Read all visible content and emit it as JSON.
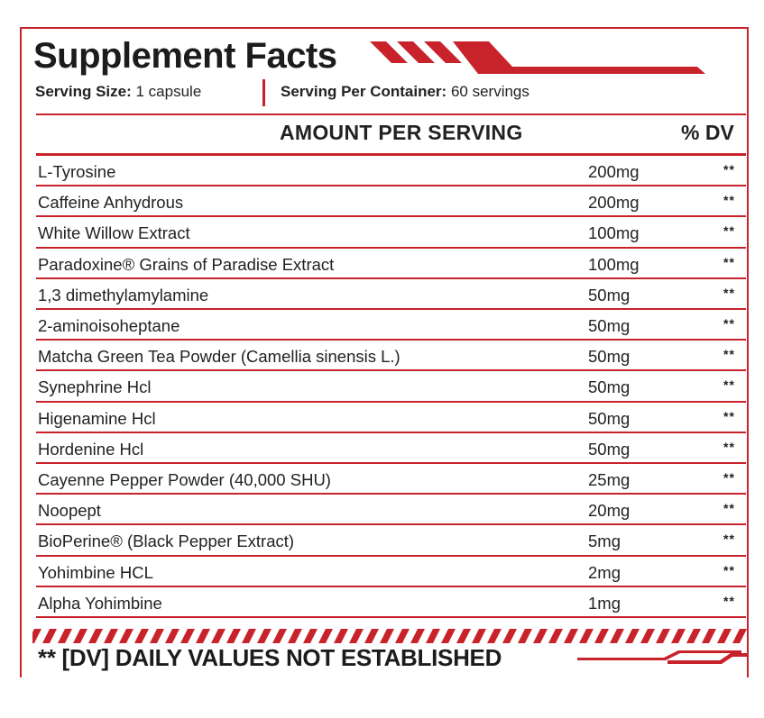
{
  "panel": {
    "title": "Supplement Facts",
    "serving_size_label": "Serving Size:",
    "serving_size_value": "1 capsule",
    "servings_label": "Serving Per Container:",
    "servings_value": "60 servings",
    "amount_header": "AMOUNT PER SERVING",
    "dv_header": "% DV",
    "ingredients": [
      {
        "name": "L-Tyrosine",
        "amount": "200mg",
        "dv": "**"
      },
      {
        "name": "Caffeine Anhydrous",
        "amount": "200mg",
        "dv": "**"
      },
      {
        "name": "White Willow Extract",
        "amount": "100mg",
        "dv": "**"
      },
      {
        "name": "Paradoxine® Grains of Paradise Extract",
        "amount": "100mg",
        "dv": "**"
      },
      {
        "name": "1,3 dimethylamylamine",
        "amount": "50mg",
        "dv": "**"
      },
      {
        "name": "2-aminoisoheptane",
        "amount": "50mg",
        "dv": "**"
      },
      {
        "name": "Matcha Green Tea Powder (Camellia sinensis L.)",
        "amount": "50mg",
        "dv": "**"
      },
      {
        "name": "Synephrine Hcl",
        "amount": "50mg",
        "dv": "**"
      },
      {
        "name": "Higenamine Hcl",
        "amount": "50mg",
        "dv": "**"
      },
      {
        "name": "Hordenine Hcl",
        "amount": "50mg",
        "dv": "**"
      },
      {
        "name": "Cayenne Pepper Powder (40,000 SHU)",
        "amount": "25mg",
        "dv": "**"
      },
      {
        "name": "Noopept",
        "amount": "20mg",
        "dv": "**"
      },
      {
        "name": "BioPerine® (Black Pepper Extract)",
        "amount": "5mg",
        "dv": "**"
      },
      {
        "name": "Yohimbine HCL",
        "amount": "2mg",
        "dv": "**"
      },
      {
        "name": "Alpha Yohimbine",
        "amount": "1mg",
        "dv": "**"
      }
    ],
    "footnote": "** [DV] DAILY VALUES NOT ESTABLISHED"
  },
  "colors": {
    "accent": "#c8232b",
    "text": "#222222",
    "background": "#ffffff"
  }
}
